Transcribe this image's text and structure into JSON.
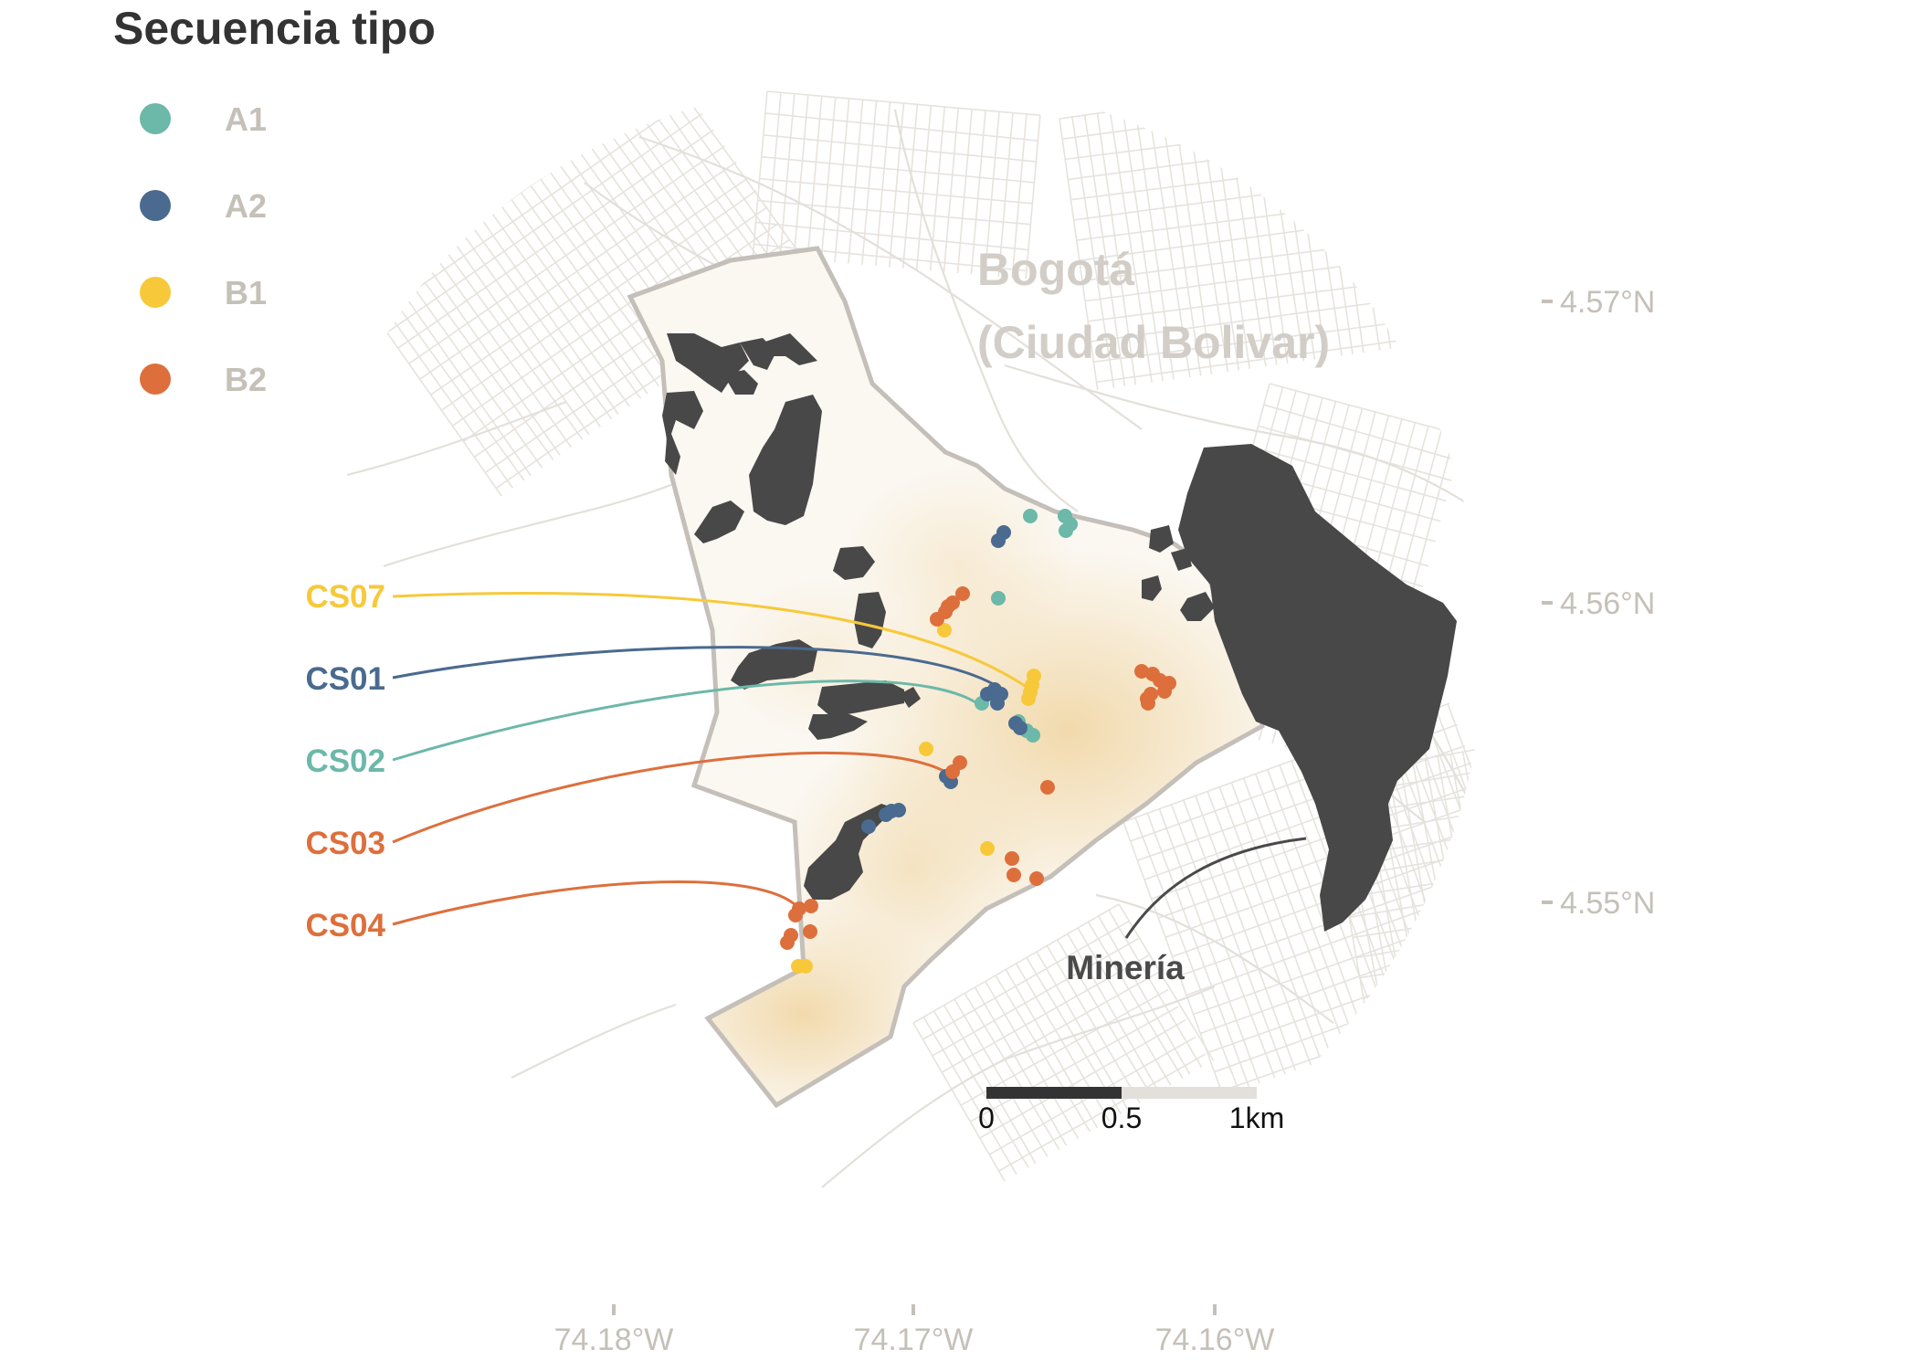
{
  "legend": {
    "title": "Secuencia tipo",
    "items": [
      {
        "label": "A1",
        "color": "#6cb8a9"
      },
      {
        "label": "A2",
        "color": "#4a6a8f"
      },
      {
        "label": "B1",
        "color": "#f7c93a"
      },
      {
        "label": "B2",
        "color": "#dd6f3c"
      }
    ]
  },
  "place_label": {
    "line1": "Bogotá",
    "line2": "(Ciudad Bolivar)"
  },
  "mining_label": "Minería",
  "axes": {
    "longitude_ticks": [
      "74.18°W",
      "74.17°W",
      "74.16°W"
    ],
    "latitude_ticks": [
      "4.57°N",
      "4.56°N",
      "4.55°N"
    ]
  },
  "scale_bar": {
    "labels": [
      "0",
      "0.5",
      "1km"
    ]
  },
  "sites": [
    {
      "id": "CS07",
      "type": "B1",
      "color": "#f7c93a"
    },
    {
      "id": "CS01",
      "type": "A2",
      "color": "#4a6a8f"
    },
    {
      "id": "CS02",
      "type": "A1",
      "color": "#6cb8a9"
    },
    {
      "id": "CS03",
      "type": "B2",
      "color": "#dd6f3c"
    },
    {
      "id": "CS04",
      "type": "B2",
      "color": "#dd6f3c"
    }
  ],
  "colors": {
    "mining_fill": "#484848",
    "study_area_fill": "#fbf8f2",
    "study_area_border": "#c4bfb9",
    "density_highlight": "#f3dcb3",
    "streets": "#e3e0db",
    "axis_text": "#c5c0b8"
  }
}
